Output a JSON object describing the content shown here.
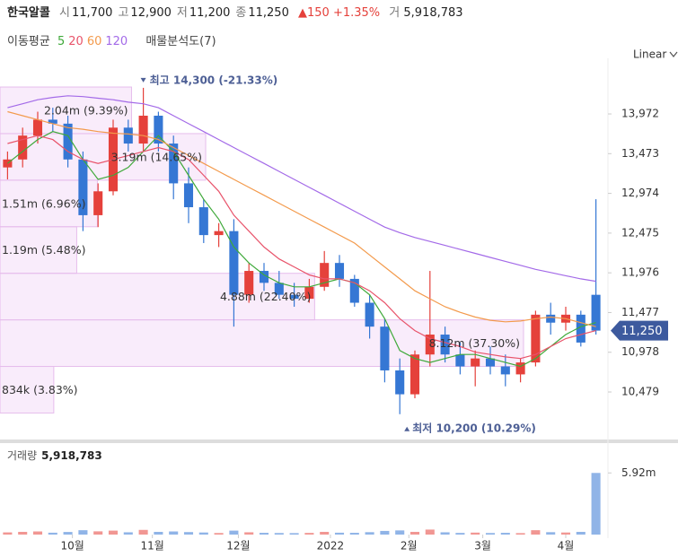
{
  "header": {
    "name": "한국알콜",
    "fields": [
      {
        "label": "시",
        "value": "11,700"
      },
      {
        "label": "고",
        "value": "12,900"
      },
      {
        "label": "저",
        "value": "11,200"
      },
      {
        "label": "종",
        "value": "11,250"
      }
    ],
    "change": "▲150",
    "change_pct": "+1.35%",
    "volume_label": "거",
    "volume": "5,918,783"
  },
  "legend": {
    "title": "이동평균",
    "analysis": "매물분석도(7)"
  },
  "scale_menu": "Linear",
  "chart_data": {
    "type": "candlestick",
    "categories": [
      null,
      null,
      null,
      null,
      null,
      null,
      null,
      null,
      null,
      null,
      null,
      null,
      null,
      null,
      null,
      null,
      null,
      null,
      null,
      null,
      null,
      null,
      null,
      null,
      null,
      null,
      null,
      null,
      null,
      null,
      null,
      null,
      null,
      null,
      null,
      null,
      null,
      null,
      null,
      null
    ],
    "open": [
      13300,
      13400,
      13700,
      13900,
      13850,
      13400,
      12700,
      13000,
      13800,
      13600,
      13950,
      13600,
      13100,
      12800,
      12450,
      12500,
      11700,
      12000,
      11850,
      11700,
      11650,
      11800,
      12100,
      11900,
      11600,
      11300,
      10750,
      10450,
      10950,
      11200,
      10950,
      10800,
      10900,
      10800,
      10700,
      10850,
      11450,
      11350,
      11450,
      11700
    ],
    "high": [
      13500,
      13800,
      14000,
      14050,
      13950,
      13500,
      13100,
      13900,
      13900,
      14300,
      14000,
      13700,
      13300,
      12900,
      12600,
      12650,
      12100,
      12100,
      12000,
      11850,
      11900,
      12250,
      12200,
      11950,
      11700,
      11400,
      10900,
      11000,
      12000,
      11300,
      11100,
      11000,
      11050,
      10950,
      10900,
      11500,
      11600,
      11550,
      11500,
      12900
    ],
    "low": [
      13150,
      13300,
      13600,
      13750,
      13300,
      12500,
      12550,
      12950,
      13500,
      13500,
      13500,
      12900,
      12600,
      12350,
      12300,
      11300,
      11600,
      11750,
      11650,
      11550,
      11600,
      11750,
      11800,
      11550,
      11150,
      10600,
      10200,
      10400,
      10800,
      10850,
      10700,
      10550,
      10700,
      10550,
      10600,
      10800,
      11200,
      11250,
      11050,
      11200
    ],
    "close": [
      13400,
      13700,
      13900,
      13850,
      13400,
      12700,
      13000,
      13800,
      13600,
      13950,
      13600,
      13100,
      12800,
      12450,
      12500,
      11700,
      12000,
      11850,
      11700,
      11650,
      11800,
      12100,
      11900,
      11600,
      11300,
      10750,
      10450,
      10950,
      11200,
      10950,
      10800,
      10900,
      10800,
      10700,
      10850,
      11450,
      11350,
      11450,
      11100,
      11250
    ],
    "up_color": "#e5413b",
    "down_color": "#3577d4",
    "series": [
      {
        "name": "5",
        "color": "#3fa93a",
        "values": [
          13350,
          13500,
          13650,
          13750,
          13700,
          13400,
          13150,
          13200,
          13300,
          13500,
          13700,
          13500,
          13200,
          12900,
          12650,
          12300,
          12100,
          11950,
          11850,
          11800,
          11800,
          11850,
          11900,
          11850,
          11700,
          11400,
          11000,
          10900,
          10850,
          10900,
          10950,
          10950,
          10900,
          10850,
          10800,
          10900,
          11050,
          11200,
          11300,
          11350
        ]
      },
      {
        "name": "20",
        "color": "#e8536a",
        "values": [
          13600,
          13650,
          13700,
          13650,
          13500,
          13400,
          13350,
          13400,
          13450,
          13500,
          13550,
          13500,
          13400,
          13200,
          13000,
          12700,
          12500,
          12300,
          12150,
          12050,
          11950,
          11900,
          11900,
          11850,
          11750,
          11600,
          11400,
          11250,
          11150,
          11100,
          11050,
          10980,
          10950,
          10920,
          10900,
          10950,
          11050,
          11150,
          11200,
          11250
        ]
      },
      {
        "name": "60",
        "color": "#f39a4c",
        "values": [
          14000,
          13950,
          13900,
          13850,
          13800,
          13780,
          13750,
          13730,
          13720,
          13700,
          13650,
          13550,
          13450,
          13350,
          13250,
          13150,
          13050,
          12950,
          12850,
          12750,
          12650,
          12550,
          12450,
          12350,
          12200,
          12050,
          11900,
          11750,
          11650,
          11550,
          11480,
          11420,
          11380,
          11360,
          11370,
          11400,
          11420,
          11400,
          11350,
          11300
        ]
      },
      {
        "name": "120",
        "color": "#a36ae8",
        "values": [
          14050,
          14100,
          14150,
          14180,
          14200,
          14190,
          14170,
          14150,
          14120,
          14100,
          14050,
          13950,
          13850,
          13750,
          13650,
          13550,
          13450,
          13350,
          13250,
          13150,
          13050,
          12950,
          12850,
          12750,
          12650,
          12550,
          12480,
          12420,
          12370,
          12320,
          12270,
          12220,
          12170,
          12120,
          12070,
          12020,
          11980,
          11940,
          11900,
          11870
        ]
      }
    ],
    "xlim": [
      -0.5,
      39.5
    ],
    "xticks": [
      {
        "value": 4.3,
        "label": "10월"
      },
      {
        "value": 9.6,
        "label": "11월"
      },
      {
        "value": 15.3,
        "label": "12월"
      },
      {
        "value": 21.4,
        "label": "2022"
      },
      {
        "value": 26.6,
        "label": "2월"
      },
      {
        "value": 31.5,
        "label": "3월"
      },
      {
        "value": 37,
        "label": "4월"
      }
    ],
    "ylim": [
      9882,
      14671
    ],
    "yticks": [
      {
        "value": 10479,
        "label": "10,479"
      },
      {
        "value": 10978,
        "label": "10,978"
      },
      {
        "value": 11477,
        "label": "11,477"
      },
      {
        "value": 11976,
        "label": "11,976"
      },
      {
        "value": 12475,
        "label": "12,475"
      },
      {
        "value": 12974,
        "label": "12,974"
      },
      {
        "value": 13473,
        "label": "13,473"
      },
      {
        "value": 13972,
        "label": "13,972"
      }
    ],
    "high_note": "최고 14,300 (-21.33%)",
    "low_note": "최저 10,200 (10.29%)",
    "current_label": "11,250",
    "profile": {
      "edges": [
        14310,
        13725,
        13140,
        12555,
        11970,
        11385,
        10800,
        10215
      ],
      "values": [
        2040000,
        3190000,
        1510000,
        1190000,
        4880000,
        8120000,
        834000
      ],
      "value_labels": [
        "2.04m (9.39%)",
        "3.19m (14.65%)",
        "1.51m (6.96%)",
        "1.19m (5.48%)",
        "4.88m (22.40%)",
        "8.12m (37.30%)",
        "834k (3.83%)"
      ],
      "xlim": [
        0,
        9360000
      ]
    },
    "volume": {
      "title": "거래량",
      "title_value": "5,918,783",
      "values": [
        210000,
        260000,
        300000,
        180000,
        250000,
        420000,
        310000,
        380000,
        220000,
        450000,
        260000,
        300000,
        240000,
        200000,
        150000,
        380000,
        220000,
        170000,
        150000,
        140000,
        160000,
        260000,
        180000,
        170000,
        230000,
        350000,
        400000,
        260000,
        480000,
        220000,
        160000,
        190000,
        150000,
        170000,
        140000,
        420000,
        230000,
        200000,
        260000,
        5918783
      ],
      "ylim": [
        0,
        8700000
      ],
      "yticks": [
        {
          "value": 5920000,
          "label": "5.92m"
        }
      ]
    }
  }
}
